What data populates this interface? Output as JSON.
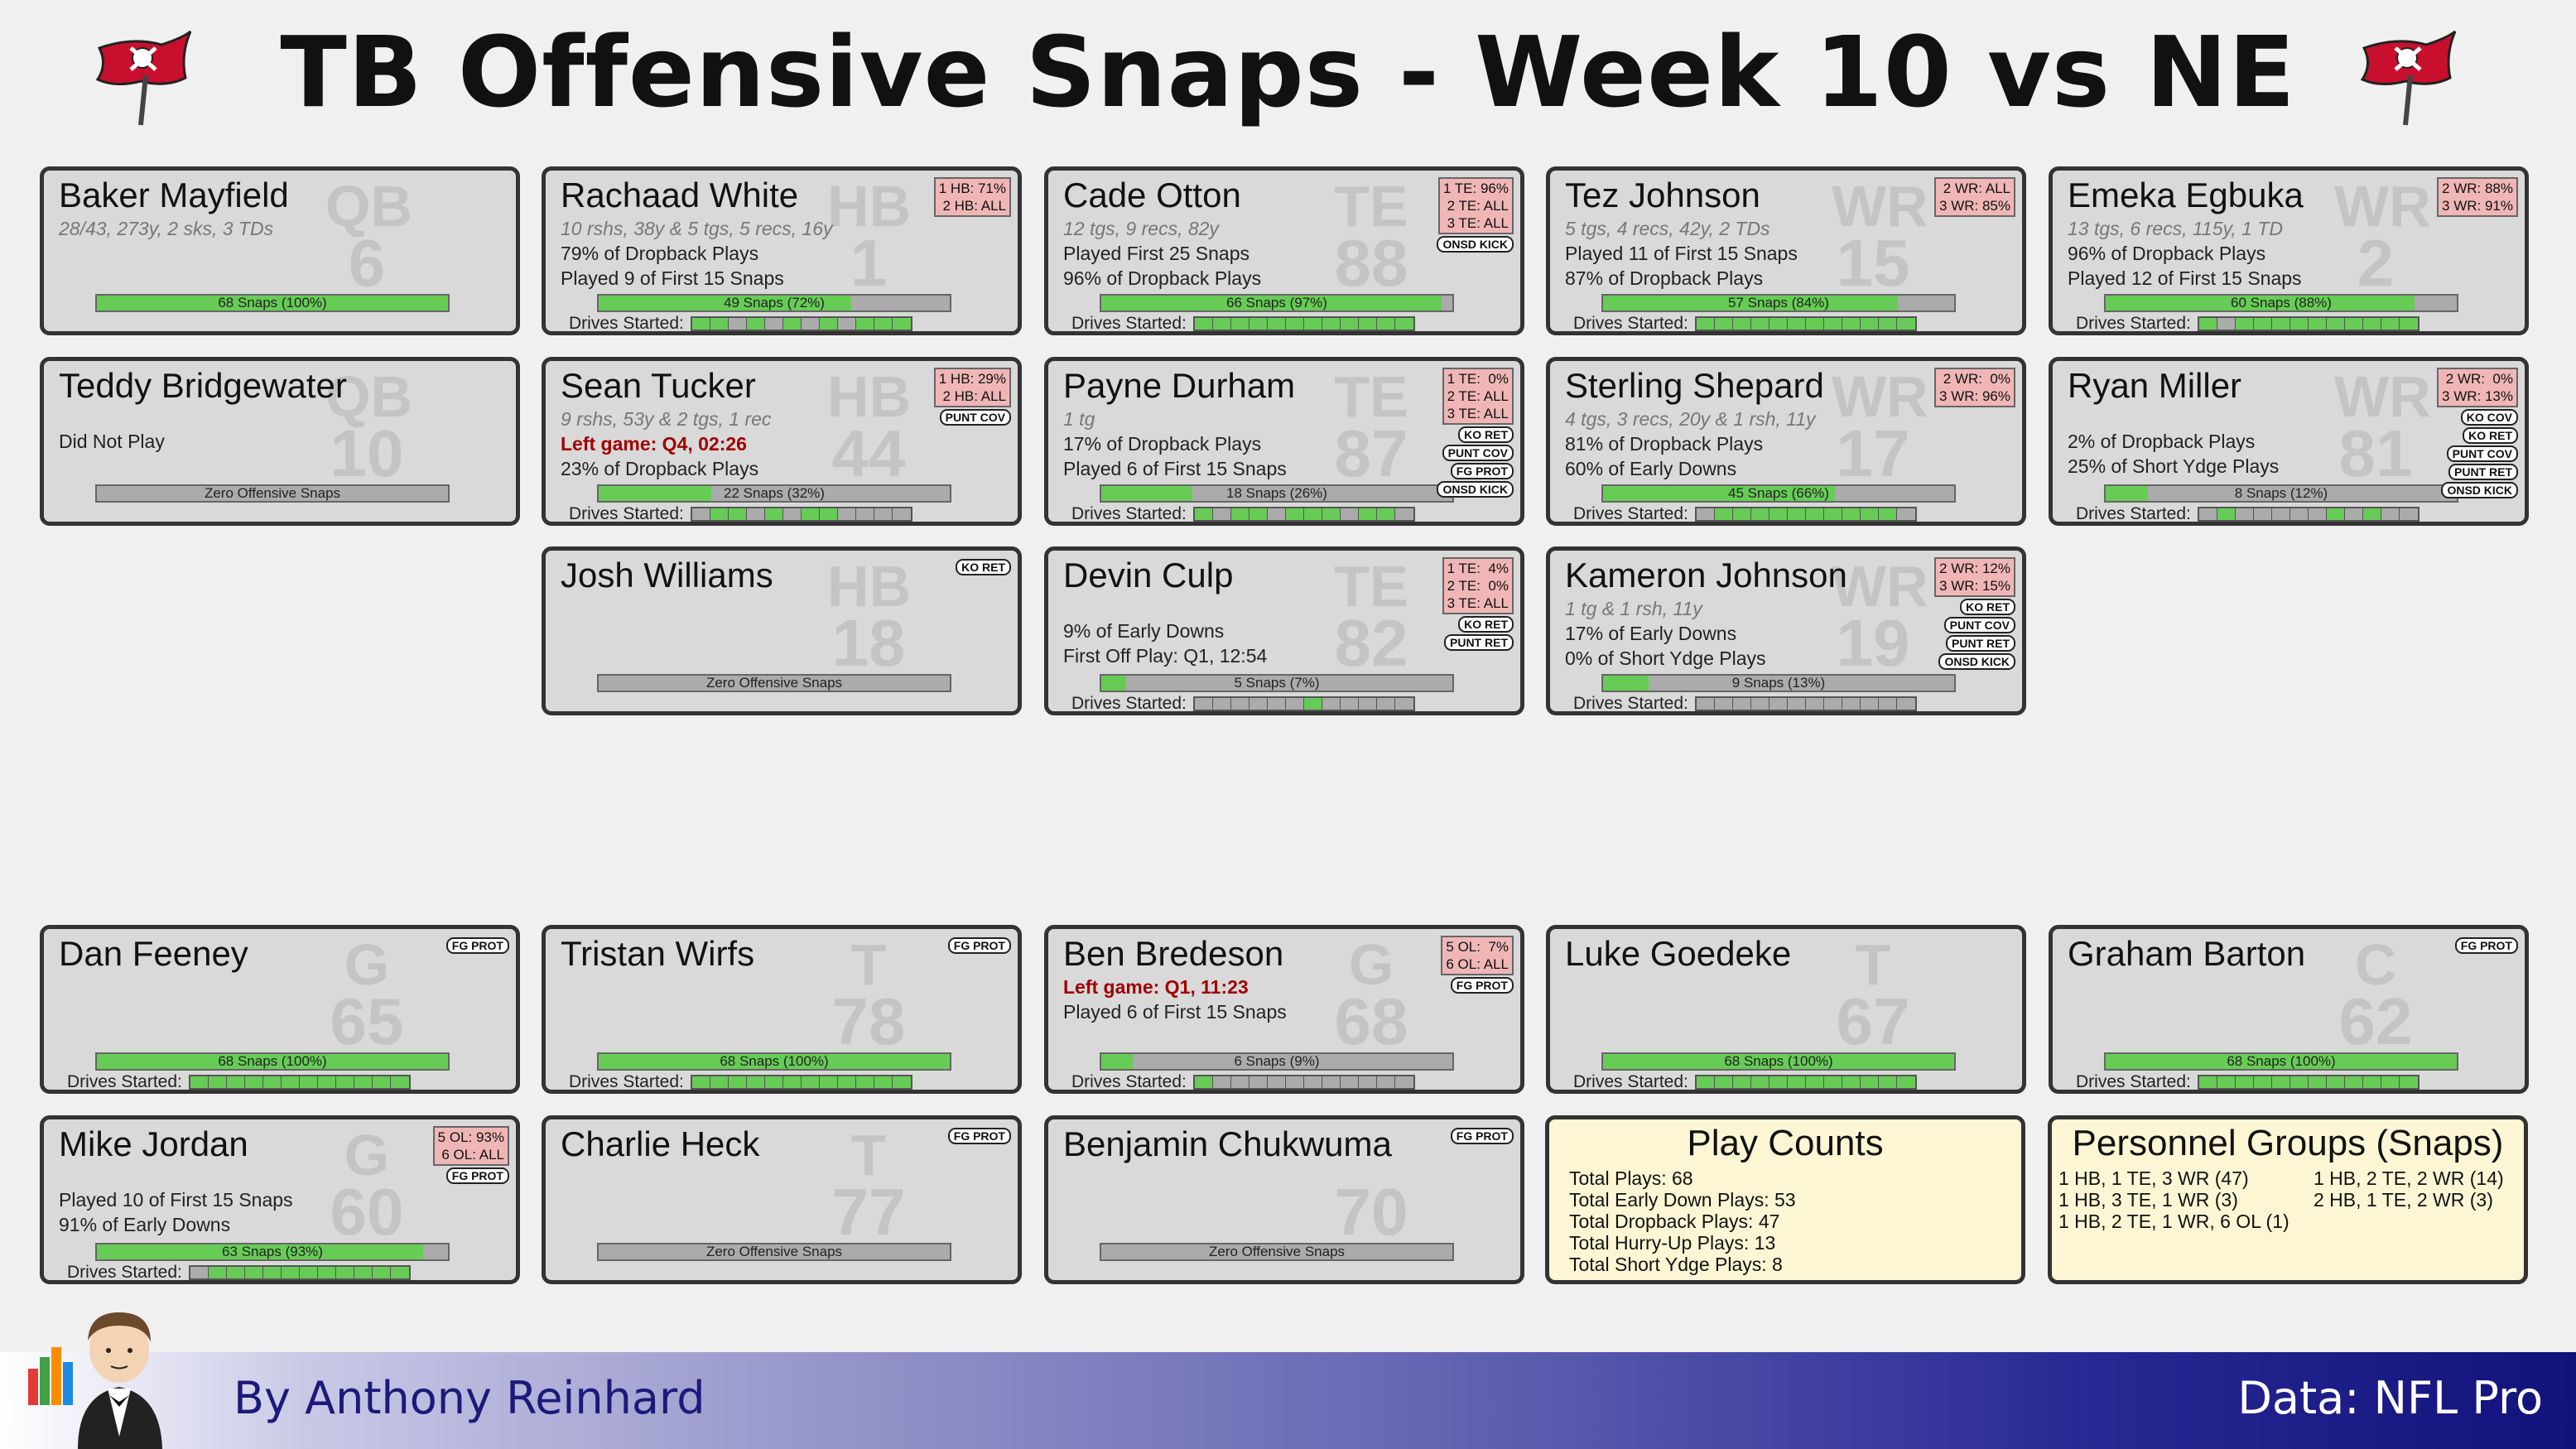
{
  "title": "TB Offensive Snaps - Week 10 vs NE",
  "logo_icon": "buccaneers-flag-logo",
  "colors": {
    "bar_fill": "#66cc55",
    "bar_empty": "#ababab",
    "badge": "#f0b6b6",
    "left_game": "#a00000",
    "info_bg": "#fdf6d4"
  },
  "drives_label": "Drives Started:",
  "cards": [
    {
      "name": "Baker Mayfield",
      "pos": "QB",
      "num": "6",
      "stat": "28/43, 273y, 2 sks, 3 TDs",
      "lines": [],
      "snaps": "68 Snaps (100%)",
      "pct": 1.0,
      "drives": null
    },
    {
      "name": "Rachaad White",
      "pos": "HB",
      "num": "1",
      "badge": "1 HB: 71%\n2 HB: ALL",
      "stat": "10 rshs, 38y & 5 tgs, 5 recs, 16y",
      "lines": [
        "79% of Dropback Plays",
        "Played 9 of First 15 Snaps"
      ],
      "snaps": "49 Snaps (72%)",
      "pct": 0.72,
      "drives": [
        1,
        1,
        0,
        1,
        0,
        1,
        0,
        1,
        0,
        1,
        1,
        1
      ]
    },
    {
      "name": "Cade Otton",
      "pos": "TE",
      "num": "88",
      "badge": "1 TE: 96%\n2 TE: ALL\n3 TE: ALL",
      "tags": [
        "ONSD KICK"
      ],
      "stat": "12 tgs, 9 recs, 82y",
      "lines": [
        "Played First 25 Snaps",
        "96% of Dropback Plays"
      ],
      "snaps": "66 Snaps (97%)",
      "pct": 0.97,
      "drives": [
        1,
        1,
        1,
        1,
        1,
        1,
        1,
        1,
        1,
        1,
        1,
        1
      ]
    },
    {
      "name": "Tez Johnson",
      "pos": "WR",
      "num": "15",
      "badge": "2 WR: ALL\n3 WR: 85%",
      "stat": "5 tgs, 4 recs, 42y, 2 TDs",
      "lines": [
        "Played 11 of First 15 Snaps",
        "87% of Dropback Plays"
      ],
      "snaps": "57 Snaps (84%)",
      "pct": 0.84,
      "drives": [
        1,
        1,
        1,
        1,
        1,
        1,
        1,
        1,
        1,
        1,
        1,
        1
      ]
    },
    {
      "name": "Emeka Egbuka",
      "pos": "WR",
      "num": "2",
      "badge": "2 WR: 88%\n3 WR: 91%",
      "stat": "13 tgs, 6 recs, 115y, 1 TD",
      "lines": [
        "96% of Dropback Plays",
        "Played 12 of First 15 Snaps"
      ],
      "snaps": "60 Snaps (88%)",
      "pct": 0.88,
      "drives": [
        1,
        0,
        1,
        1,
        1,
        1,
        1,
        1,
        1,
        1,
        1,
        1
      ]
    },
    {
      "name": "Teddy Bridgewater",
      "pos": "QB",
      "num": "10",
      "lines": [
        "Did Not Play"
      ],
      "snaps": "Zero Offensive Snaps",
      "pct": 0,
      "drives": null
    },
    {
      "name": "Sean Tucker",
      "pos": "HB",
      "num": "44",
      "badge": "1 HB: 29%\n2 HB: ALL",
      "tags": [
        "PUNT COV"
      ],
      "stat": "9 rshs, 53y & 2 tgs, 1 rec",
      "left": "Left game: Q4, 02:26",
      "lines": [
        "23% of Dropback Plays"
      ],
      "snaps": "22 Snaps (32%)",
      "pct": 0.32,
      "drives": [
        0,
        1,
        1,
        0,
        1,
        0,
        1,
        1,
        0,
        0,
        0,
        0
      ]
    },
    {
      "name": "Payne Durham",
      "pos": "TE",
      "num": "87",
      "badge": "1 TE:  0%\n2 TE: ALL\n3 TE: ALL",
      "tags": [
        "KO RET",
        "PUNT COV",
        "FG PROT",
        "ONSD KICK"
      ],
      "stat": "1 tg",
      "lines": [
        "17% of Dropback Plays",
        "Played 6 of First 15 Snaps"
      ],
      "snaps": "18 Snaps (26%)",
      "pct": 0.26,
      "drives": [
        1,
        0,
        1,
        1,
        0,
        1,
        1,
        1,
        0,
        1,
        1,
        0
      ]
    },
    {
      "name": "Sterling Shepard",
      "pos": "WR",
      "num": "17",
      "badge": "2 WR:  0%\n3 WR: 96%",
      "stat": "4 tgs, 3 recs, 20y & 1 rsh, 11y",
      "lines": [
        "81% of Dropback Plays",
        "60% of Early Downs"
      ],
      "snaps": "45 Snaps (66%)",
      "pct": 0.66,
      "drives": [
        0,
        1,
        1,
        1,
        1,
        1,
        1,
        1,
        1,
        1,
        1,
        0
      ]
    },
    {
      "name": "Ryan Miller",
      "pos": "WR",
      "num": "81",
      "badge": "2 WR:  0%\n3 WR: 13%",
      "tags": [
        "KO COV",
        "KO RET",
        "PUNT COV",
        "PUNT RET",
        "ONSD KICK"
      ],
      "lines": [
        "2% of Dropback Plays",
        "25% of Short Ydge Plays"
      ],
      "snaps": "8 Snaps (12%)",
      "pct": 0.12,
      "drives": [
        0,
        1,
        0,
        0,
        0,
        0,
        0,
        1,
        0,
        1,
        0,
        0
      ]
    },
    {
      "name": "Josh Williams",
      "pos": "HB",
      "num": "18",
      "tags": [
        "KO RET"
      ],
      "lines": [],
      "snaps": "Zero Offensive Snaps",
      "pct": 0,
      "drives": null
    },
    {
      "name": "Devin Culp",
      "pos": "TE",
      "num": "82",
      "badge": "1 TE:  4%\n2 TE:  0%\n3 TE: ALL",
      "tags": [
        "KO RET",
        "PUNT RET"
      ],
      "lines": [
        "9% of Early Downs",
        "First Off Play: Q1, 12:54"
      ],
      "snaps": "5 Snaps (7%)",
      "pct": 0.07,
      "drives": [
        0,
        0,
        0,
        0,
        0,
        0,
        1,
        0,
        0,
        0,
        0,
        0
      ]
    },
    {
      "name": "Kameron Johnson",
      "pos": "WR",
      "num": "19",
      "badge": "2 WR: 12%\n3 WR: 15%",
      "tags": [
        "KO RET",
        "PUNT COV",
        "PUNT RET",
        "ONSD KICK"
      ],
      "stat": "1 tg & 1 rsh, 11y",
      "lines": [
        "17% of Early Downs",
        "0% of Short Ydge Plays"
      ],
      "snaps": "9 Snaps (13%)",
      "pct": 0.13,
      "drives": [
        0,
        0,
        0,
        0,
        0,
        0,
        0,
        0,
        0,
        0,
        0,
        0
      ]
    },
    {
      "name": "Dan Feeney",
      "pos": "G",
      "num": "65",
      "tags": [
        "FG PROT"
      ],
      "lines": [],
      "snaps": "68 Snaps (100%)",
      "pct": 1.0,
      "drives": [
        1,
        1,
        1,
        1,
        1,
        1,
        1,
        1,
        1,
        1,
        1,
        1
      ]
    },
    {
      "name": "Tristan Wirfs",
      "pos": "T",
      "num": "78",
      "tags": [
        "FG PROT"
      ],
      "lines": [],
      "snaps": "68 Snaps (100%)",
      "pct": 1.0,
      "drives": [
        1,
        1,
        1,
        1,
        1,
        1,
        1,
        1,
        1,
        1,
        1,
        1
      ]
    },
    {
      "name": "Ben Bredeson",
      "pos": "G",
      "num": "68",
      "badge": "5 OL:  7%\n6 OL: ALL",
      "tags": [
        "FG PROT"
      ],
      "left": "Left game: Q1, 11:23",
      "lines": [
        "Played 6 of First 15 Snaps"
      ],
      "snaps": "6 Snaps (9%)",
      "pct": 0.09,
      "drives": [
        1,
        0,
        0,
        0,
        0,
        0,
        0,
        0,
        0,
        0,
        0,
        0
      ]
    },
    {
      "name": "Luke Goedeke",
      "pos": "T",
      "num": "67",
      "lines": [],
      "snaps": "68 Snaps (100%)",
      "pct": 1.0,
      "drives": [
        1,
        1,
        1,
        1,
        1,
        1,
        1,
        1,
        1,
        1,
        1,
        1
      ]
    },
    {
      "name": "Graham Barton",
      "pos": "C",
      "num": "62",
      "tags": [
        "FG PROT"
      ],
      "lines": [],
      "snaps": "68 Snaps (100%)",
      "pct": 1.0,
      "drives": [
        1,
        1,
        1,
        1,
        1,
        1,
        1,
        1,
        1,
        1,
        1,
        1
      ]
    },
    {
      "name": "Mike Jordan",
      "pos": "G",
      "num": "60",
      "badge": "5 OL: 93%\n6 OL: ALL",
      "tags": [
        "FG PROT"
      ],
      "lines": [
        "Played 10 of First 15 Snaps",
        "91% of Early Downs"
      ],
      "snaps": "63 Snaps (93%)",
      "pct": 0.93,
      "drives": [
        0,
        1,
        1,
        1,
        1,
        1,
        1,
        1,
        1,
        1,
        1,
        1
      ]
    },
    {
      "name": "Charlie Heck",
      "pos": "T",
      "num": "77",
      "tags": [
        "FG PROT"
      ],
      "lines": [],
      "snaps": "Zero Offensive Snaps",
      "pct": 0,
      "drives": null
    },
    {
      "name": "Benjamin Chukwuma",
      "pos": "",
      "num": "70",
      "tags": [
        "FG PROT"
      ],
      "lines": [],
      "snaps": "Zero Offensive Snaps",
      "pct": 0,
      "drives": null
    }
  ],
  "play_counts": {
    "title": "Play Counts",
    "items": [
      "Total Plays: 68",
      "Total Early Down Plays: 53",
      "Total Dropback Plays: 47",
      "Total Hurry-Up Plays: 13",
      "Total Short Ydge Plays: 8"
    ]
  },
  "personnel": {
    "title": "Personnel Groups (Snaps)",
    "left": [
      "1 HB, 1 TE, 3 WR (47)",
      "1 HB, 3 TE, 1 WR (3)",
      "1 HB, 2 TE, 1 WR, 6 OL (1)"
    ],
    "right": [
      "1 HB, 2 TE, 2 WR (14)",
      "2 HB, 1 TE, 2 WR (3)"
    ]
  },
  "footer": {
    "byline": "By Anthony Reinhard",
    "source": "Data: NFL Pro",
    "avatar_icon": "butler-chart-mascot-icon"
  }
}
